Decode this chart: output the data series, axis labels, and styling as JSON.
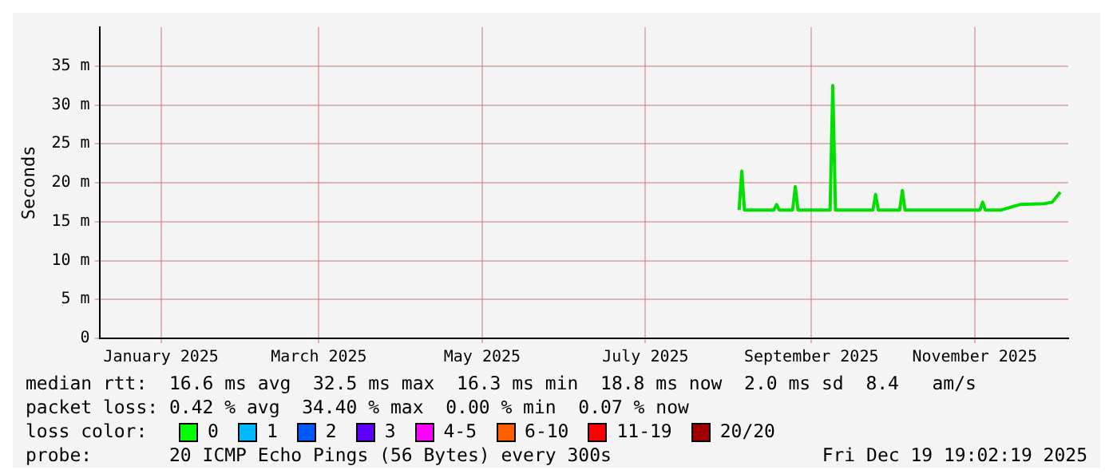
{
  "chart_data": {
    "type": "line",
    "ylabel": "Seconds",
    "x": [
      "2025-08-05",
      "2025-08-06",
      "2025-08-07",
      "2025-08-18",
      "2025-08-19",
      "2025-08-20",
      "2025-08-25",
      "2025-08-26",
      "2025-08-27",
      "2025-09-08",
      "2025-09-09",
      "2025-09-10",
      "2025-09-24",
      "2025-09-25",
      "2025-09-26",
      "2025-10-04",
      "2025-10-05",
      "2025-10-06",
      "2025-11-03",
      "2025-11-04",
      "2025-11-05",
      "2025-11-11",
      "2025-11-18",
      "2025-11-27",
      "2025-11-30",
      "2025-12-03"
    ],
    "series": [
      {
        "color": "#00e000",
        "values": [
          16.5,
          21.5,
          16.5,
          16.5,
          17.2,
          16.5,
          16.5,
          19.5,
          16.5,
          16.5,
          32.5,
          16.5,
          16.5,
          18.5,
          16.5,
          16.5,
          19,
          16.5,
          16.5,
          17.5,
          16.5,
          16.5,
          17.2,
          17.3,
          17.5,
          18.8
        ]
      }
    ],
    "xlim": [
      "2024-12-09",
      "2025-12-06"
    ],
    "xticks": [
      {
        "value": "2025-01-01",
        "label": "January 2025"
      },
      {
        "value": "2025-03-01",
        "label": "March 2025"
      },
      {
        "value": "2025-05-01",
        "label": "May 2025"
      },
      {
        "value": "2025-07-01",
        "label": "July 2025"
      },
      {
        "value": "2025-09-01",
        "label": "September 2025"
      },
      {
        "value": "2025-11-01",
        "label": "November 2025"
      }
    ],
    "ylim": [
      0,
      40
    ],
    "yticks": [
      0,
      {
        "value": 5,
        "label": "5 m"
      },
      {
        "value": 10,
        "label": "10 m"
      },
      {
        "value": 15,
        "label": "15 m"
      },
      {
        "value": 20,
        "label": "20 m"
      },
      {
        "value": 25,
        "label": "25 m"
      },
      {
        "value": 30,
        "label": "30 m"
      },
      {
        "value": 35,
        "label": "35 m"
      }
    ],
    "grid": true,
    "legend": false,
    "marker": "none",
    "line_style": "solid",
    "annotations": [
      "median rtt:  16.6 ms avg  32.5 ms max  16.3 ms min  18.8 ms now  2.0 ms sd  8.4   am/s",
      "packet loss: 0.42 % avg  34.40 % max  0.00 % min  0.07 % now",
      "loss color:",
      "0",
      "1",
      "2",
      "3",
      "4-5",
      "6-10",
      "11-19",
      "20/20",
      "probe:       20 ICMP Echo Pings (56 Bytes) every 300s",
      "Fri Dec 19 19:02:19 2025"
    ]
  }
}
